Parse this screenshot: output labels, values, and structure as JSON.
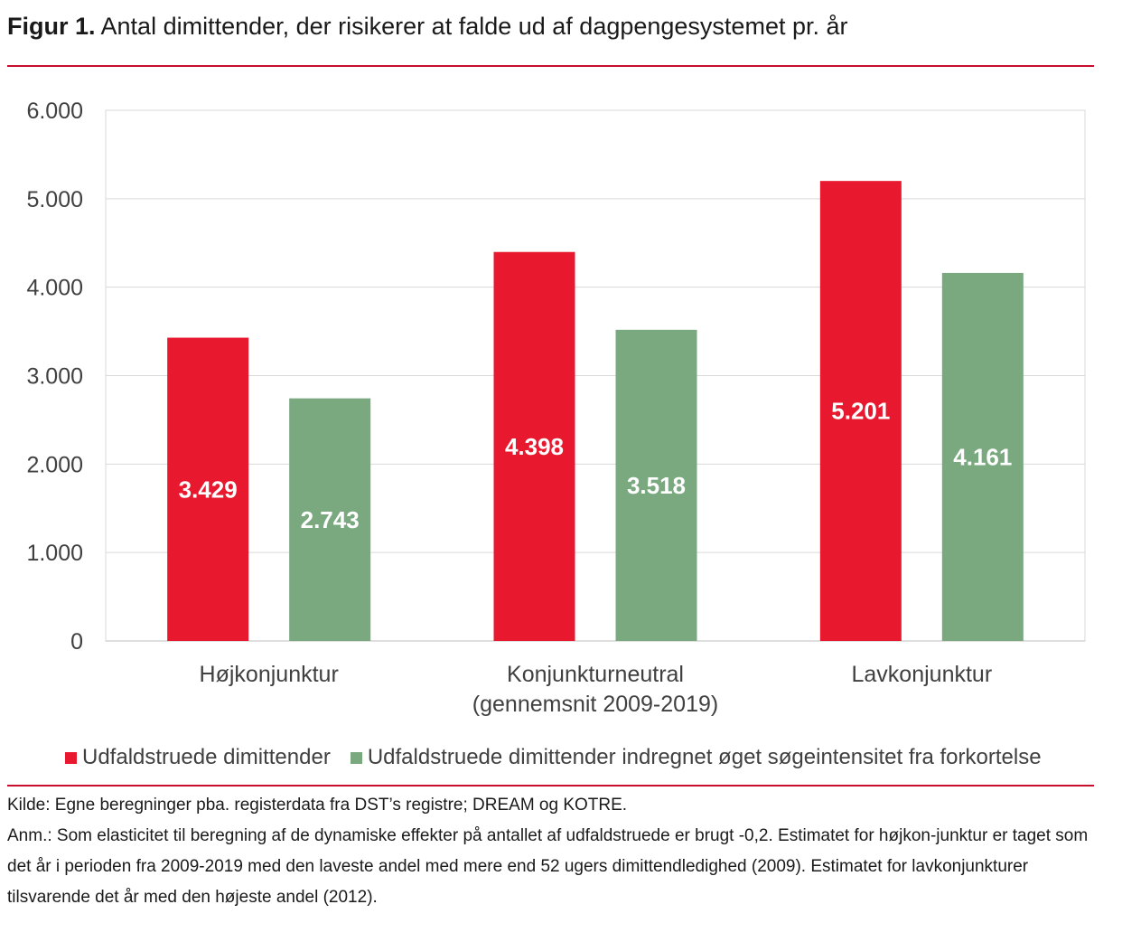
{
  "title": {
    "prefix": "Figur 1.",
    "text": "Antal dimittender, der risikerer at falde ud af dagpengesystemet pr. år"
  },
  "chart_data": {
    "type": "bar",
    "categories": [
      [
        "Højkonjunktur"
      ],
      [
        "Konjunkturneutral",
        "(gennemsnit 2009-2019)"
      ],
      [
        "Lavkonjunktur"
      ]
    ],
    "series": [
      {
        "name": "Udfaldstruede dimittender",
        "color": "#e8182f",
        "values": [
          3429,
          4398,
          5201
        ],
        "labels": [
          "3.429",
          "4.398",
          "5.201"
        ]
      },
      {
        "name": "Udfaldstruede dimittender indregnet øget søgeintensitet fra forkortelse",
        "color": "#7aa980",
        "values": [
          2743,
          3518,
          4161
        ],
        "labels": [
          "2.743",
          "3.518",
          "4.161"
        ]
      }
    ],
    "ylim": [
      0,
      6000
    ],
    "yticks": [
      0,
      1000,
      2000,
      3000,
      4000,
      5000,
      6000
    ],
    "ytick_labels": [
      "0",
      "1.000",
      "2.000",
      "3.000",
      "4.000",
      "5.000",
      "6.000"
    ],
    "grid": true,
    "legend_position": "bottom"
  },
  "notes": {
    "source": "Kilde:  Egne beregninger pba. registerdata fra DST’s registre; DREAM og KOTRE.",
    "remark": "Anm.: Som elasticitet til beregning af de dynamiske effekter på antallet af udfaldstruede er brugt -0,2. Estimatet for højkon-junktur er taget som det år i perioden fra 2009-2019 med den laveste andel med mere end 52 ugers dimittendledighed (2009). Estimatet for lavkonjunkturer tilsvarende det år med den højeste andel (2012)."
  }
}
